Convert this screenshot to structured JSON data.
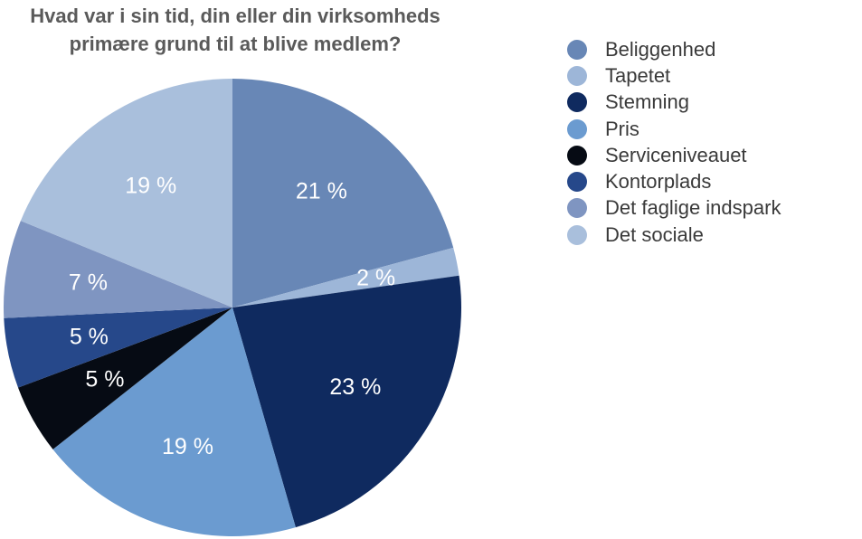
{
  "chart_data": {
    "type": "pie",
    "title_lines": [
      "Hvad var i sin tid, din eller din virksomheds",
      "primære grund til at blive medlem?"
    ],
    "slices": [
      {
        "name": "Beliggenhed",
        "value": 21,
        "label": "21 %",
        "color": "#6887b6"
      },
      {
        "name": "Tapetet",
        "value": 2,
        "label": "2 %",
        "color": "#9db6d8"
      },
      {
        "name": "Stemning",
        "value": 23,
        "label": "23 %",
        "color": "#0f2a5f"
      },
      {
        "name": "Pris",
        "value": 19,
        "label": "19 %",
        "color": "#6b9bd0"
      },
      {
        "name": "Serviceniveauet",
        "value": 5,
        "label": "5 %",
        "color": "#060b14"
      },
      {
        "name": "Kontorplads",
        "value": 5,
        "label": "5 %",
        "color": "#26488a"
      },
      {
        "name": "Det faglige indspark",
        "value": 7,
        "label": "7 %",
        "color": "#7f95c1"
      },
      {
        "name": "Det sociale",
        "value": 19,
        "label": "19 %",
        "color": "#a9bfdc"
      }
    ],
    "legend_position": "right"
  }
}
